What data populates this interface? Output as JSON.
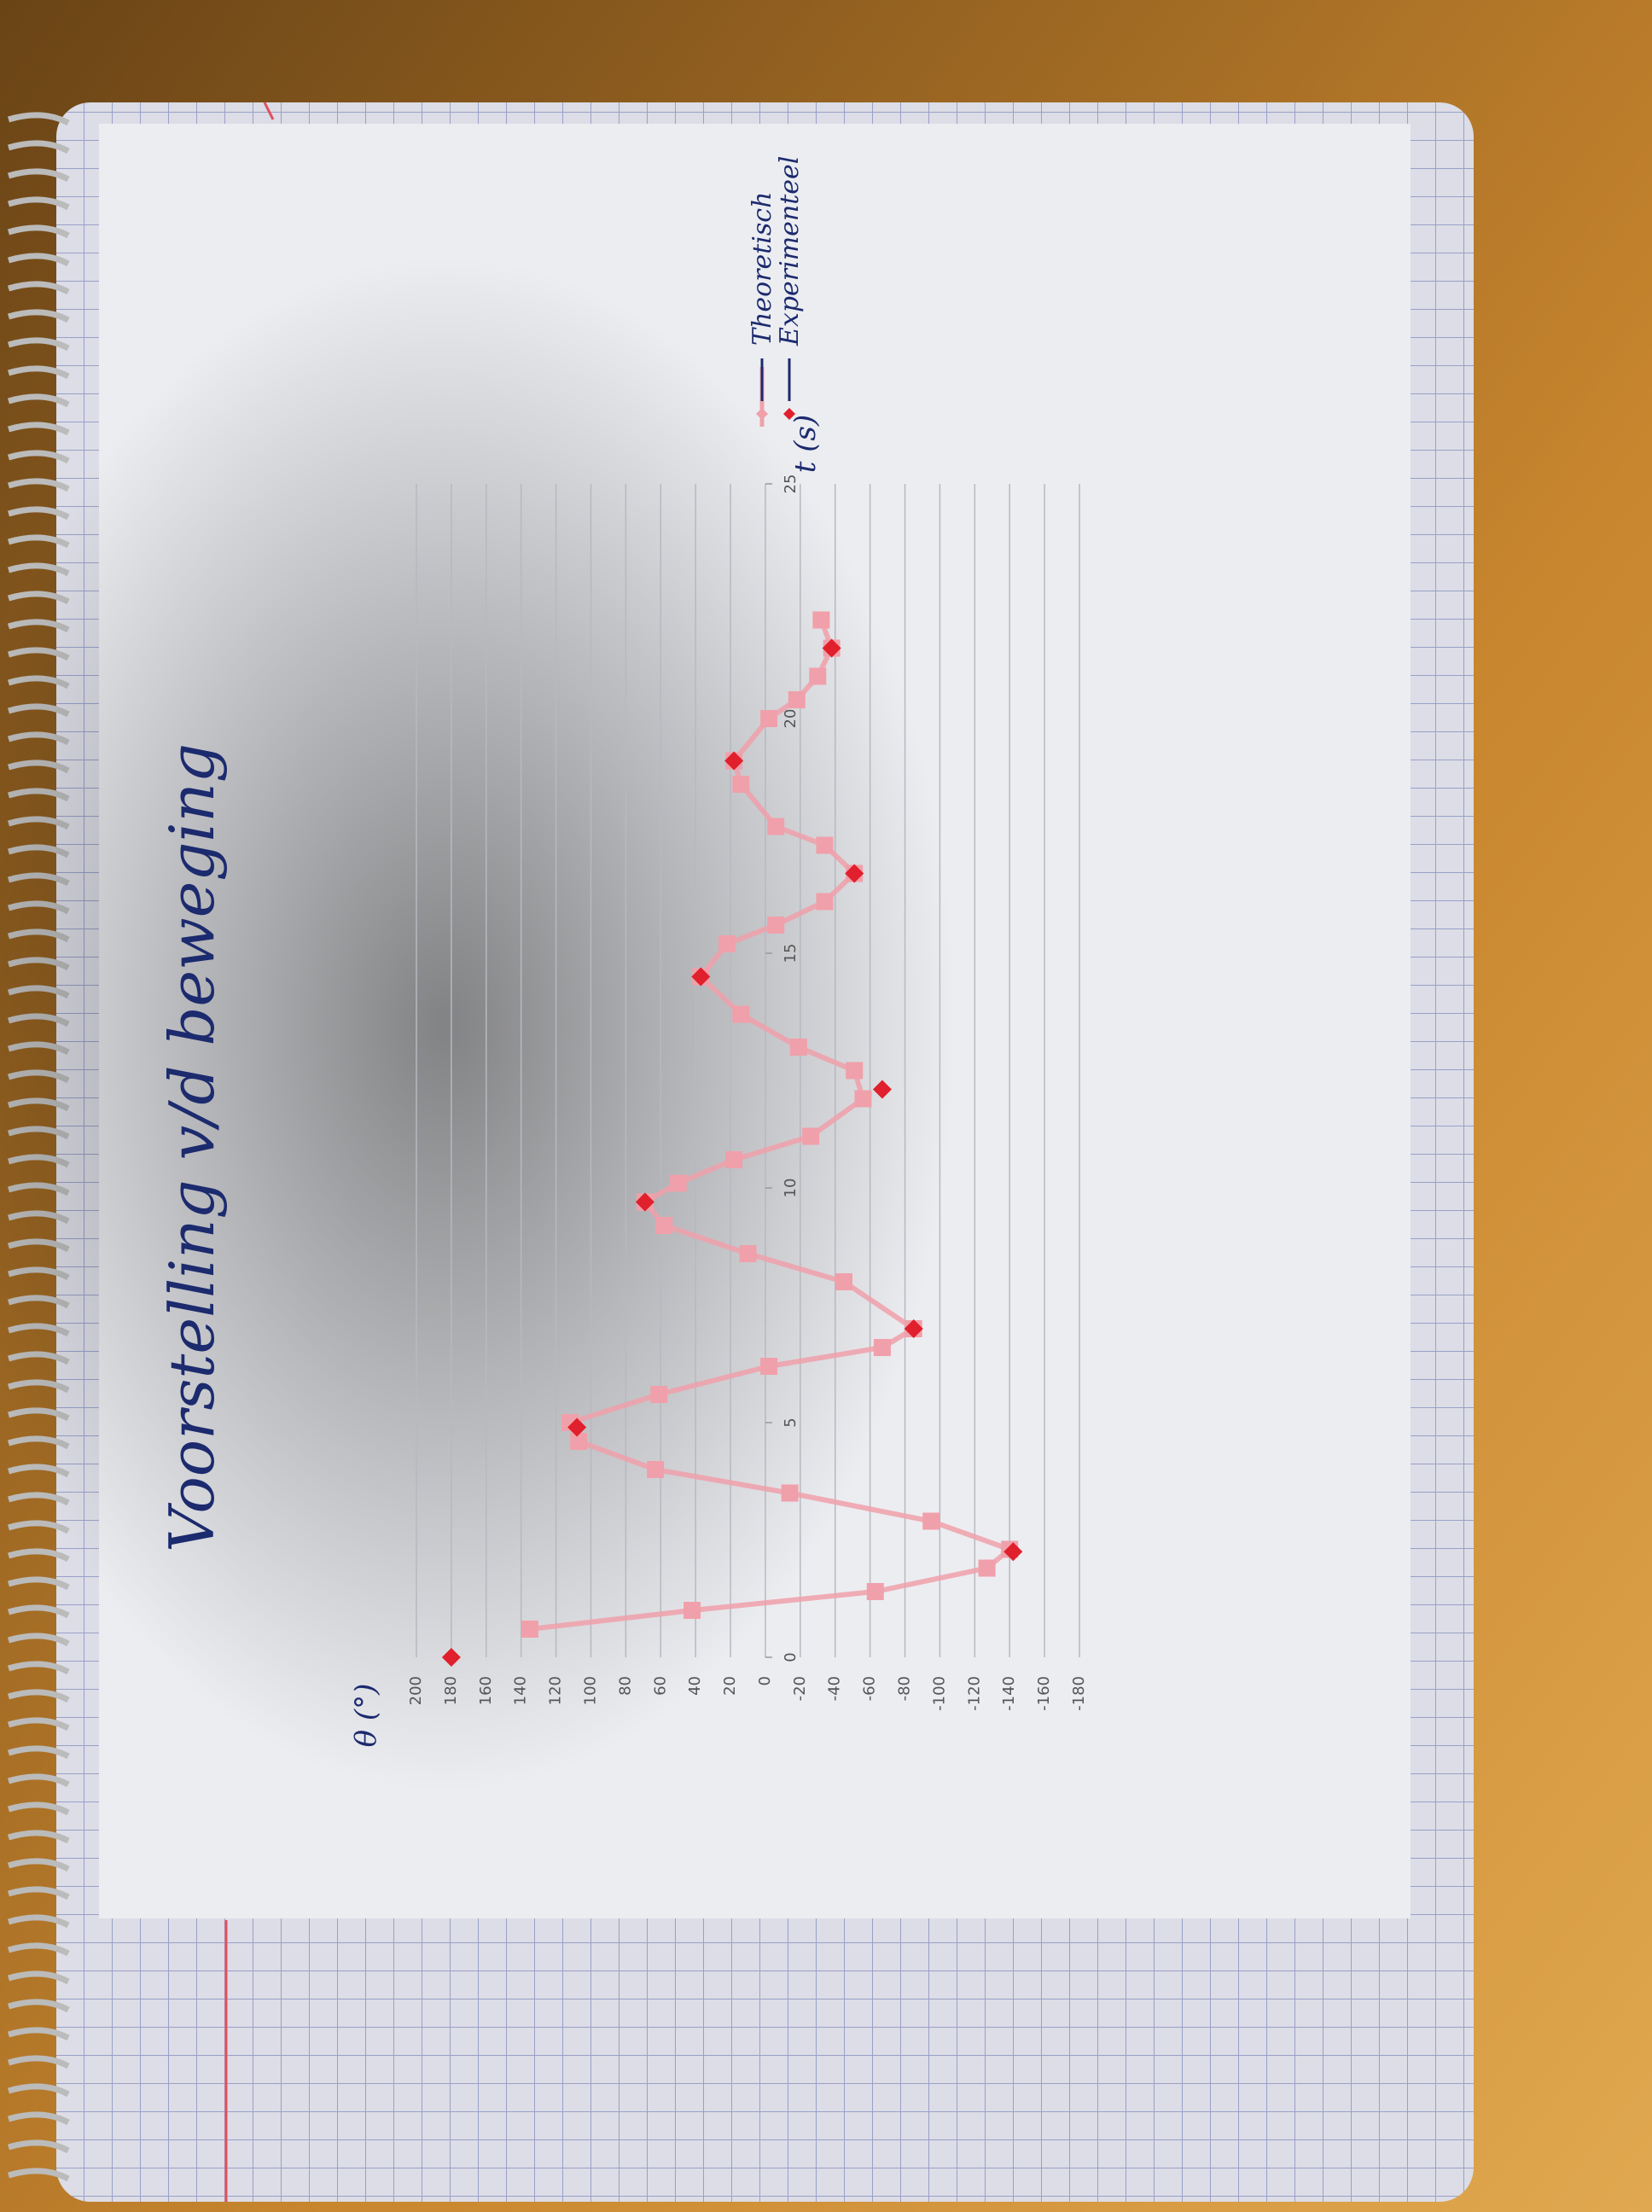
{
  "chart_data": {
    "type": "line",
    "title": "Voorstelling v/d beweging",
    "y_label": "θ (°)",
    "x_label": "t (s)",
    "ylim": [
      -180,
      200
    ],
    "yticks": [
      200,
      180,
      160,
      140,
      120,
      100,
      80,
      60,
      40,
      20,
      0,
      -20,
      -40,
      -60,
      -80,
      -100,
      -120,
      -140,
      -160,
      -180
    ],
    "xlim": [
      0,
      25
    ],
    "xticks": [
      0,
      5,
      10,
      15,
      20,
      25
    ],
    "grid": true,
    "series": [
      {
        "name": "Theoretisch",
        "color": "#f0a0aa",
        "marker": "square",
        "line": true,
        "x": [
          0.6,
          1.0,
          1.4,
          1.9,
          2.3,
          2.9,
          3.5,
          4.0,
          4.6,
          5.0,
          5.6,
          6.2,
          6.6,
          7.0,
          8.0,
          8.6,
          9.2,
          9.7,
          10.1,
          10.6,
          11.1,
          11.9,
          12.5,
          13.0,
          13.7,
          14.5,
          15.2,
          15.6,
          16.1,
          16.7,
          17.3,
          17.7,
          18.6,
          19.1,
          20.0,
          20.4,
          20.9,
          21.5,
          22.1
        ],
        "values": [
          135,
          42,
          -63,
          -127,
          -140,
          -95,
          -14,
          63,
          107,
          112,
          61,
          -2,
          -67,
          -85,
          -45,
          10,
          58,
          69,
          50,
          18,
          -26,
          -56,
          -51,
          -19,
          14,
          37,
          22,
          -6,
          -34,
          -51,
          -34,
          -6,
          14,
          18,
          -2,
          -18,
          -30,
          -38,
          -32
        ]
      },
      {
        "name": "Experimenteel",
        "color": "#e0202c",
        "marker": "diamond",
        "line": false,
        "x": [
          0,
          2.25,
          4.9,
          7.0,
          9.7,
          12.1,
          14.5,
          16.7,
          19.1,
          21.5
        ],
        "values": [
          180,
          -142,
          108,
          -85,
          69,
          -67,
          37,
          -51,
          18,
          -38
        ]
      }
    ]
  }
}
